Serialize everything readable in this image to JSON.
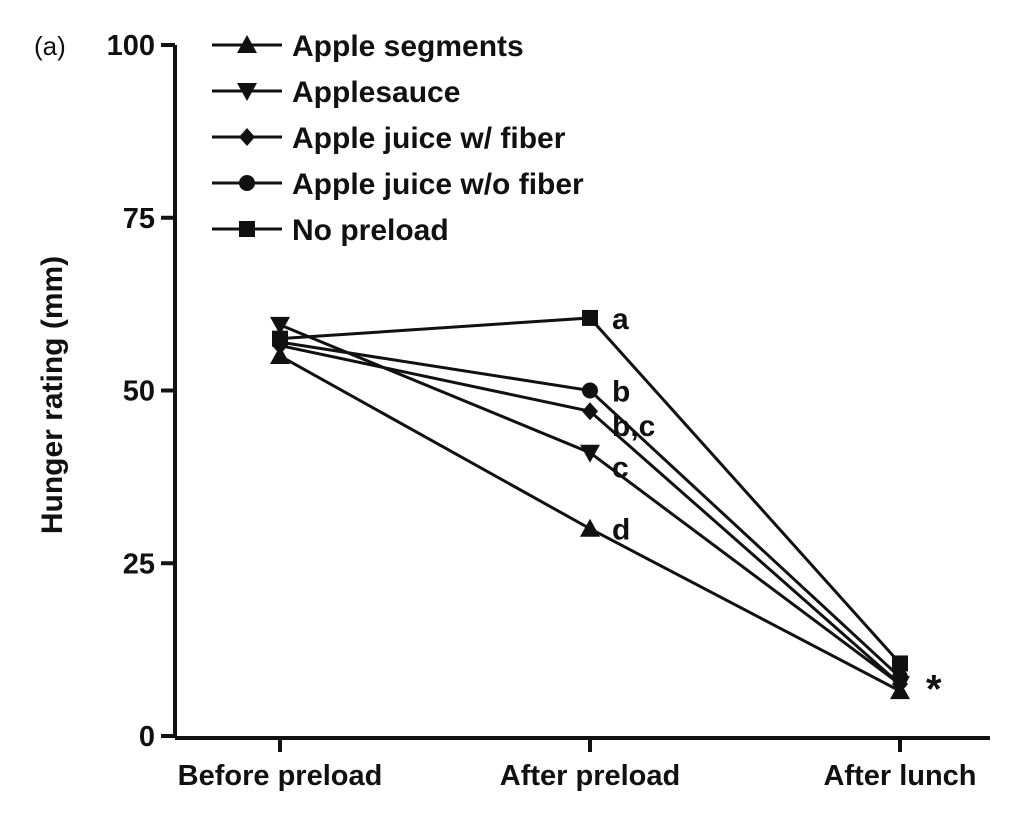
{
  "panel_label": "(a)",
  "chart_data": {
    "type": "line",
    "categories": [
      "Before preload",
      "After preload",
      "After lunch"
    ],
    "ylabel": "Hunger rating (mm)",
    "xlabel": "",
    "ylim": [
      0,
      100
    ],
    "yticks": [
      "0",
      "25",
      "50",
      "75",
      "100"
    ],
    "legend_position": "top-left",
    "grid": false,
    "series": [
      {
        "name": "Apple segments",
        "marker": "triangle-up",
        "values": [
          55,
          30,
          6.5
        ]
      },
      {
        "name": "Applesauce",
        "marker": "triangle-down",
        "values": [
          59.5,
          41,
          7.5
        ]
      },
      {
        "name": "Apple juice w/ fiber",
        "marker": "diamond",
        "values": [
          56.5,
          47,
          7.5
        ]
      },
      {
        "name": "Apple juice w/o fiber",
        "marker": "circle",
        "values": [
          57,
          50,
          8.5
        ]
      },
      {
        "name": "No preload",
        "marker": "square",
        "values": [
          57.5,
          60.5,
          10.5
        ]
      }
    ],
    "annotations": [
      {
        "text": "a",
        "x": "After preload",
        "y": 60.5
      },
      {
        "text": "b",
        "x": "After preload",
        "y": 50
      },
      {
        "text": "b,c",
        "x": "After preload",
        "y": 45
      },
      {
        "text": "c",
        "x": "After preload",
        "y": 39
      },
      {
        "text": "d",
        "x": "After preload",
        "y": 30
      },
      {
        "text": "*",
        "x": "After lunch",
        "y": 8
      }
    ]
  }
}
